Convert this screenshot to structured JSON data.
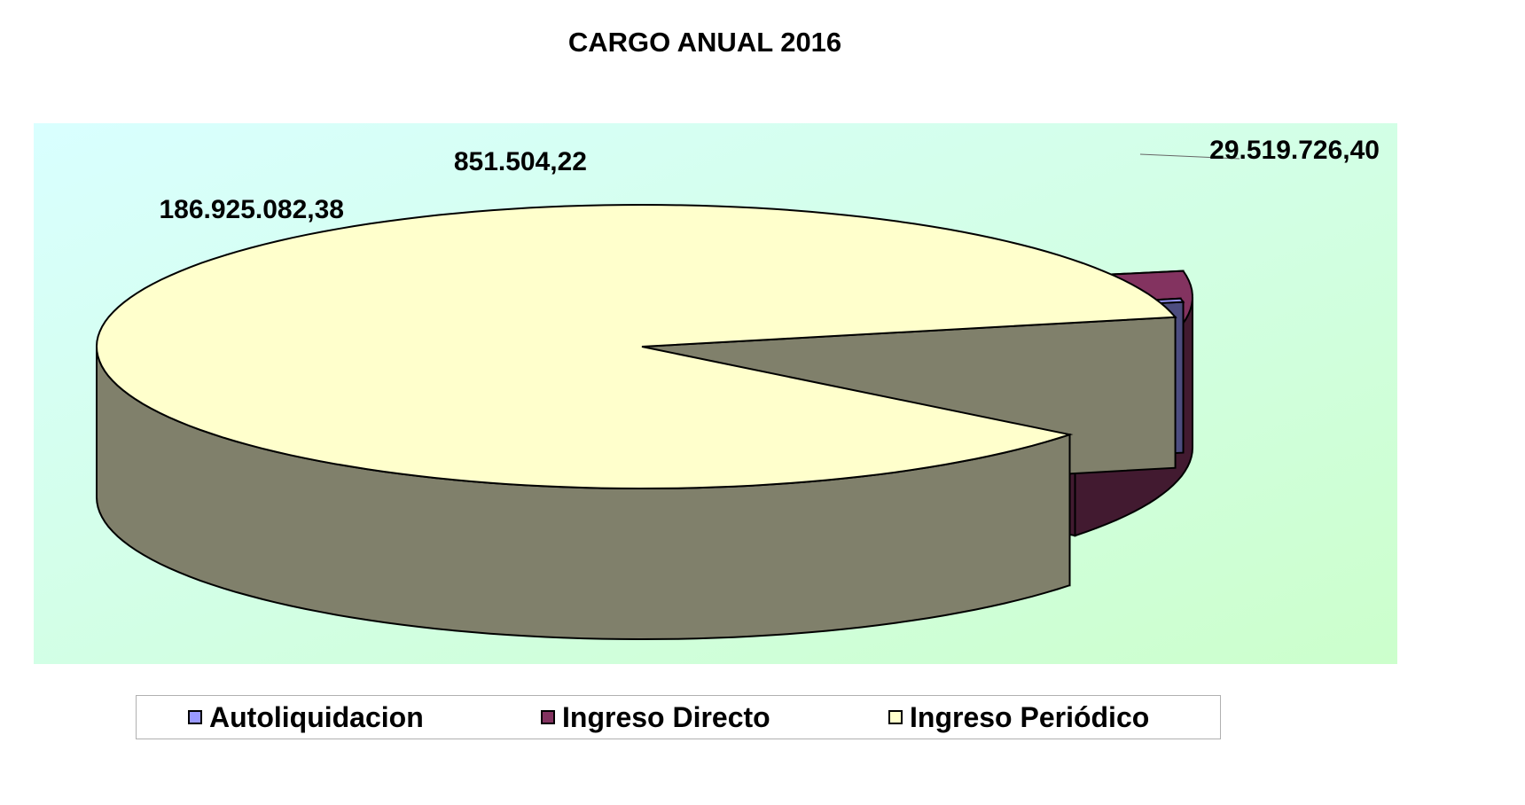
{
  "chart_data": {
    "type": "pie",
    "title": "CARGO ANUAL 2016",
    "categories": [
      "Autoliquidacion",
      "Ingreso Directo",
      "Ingreso Periódico"
    ],
    "values": [
      851504.22,
      29519726.4,
      186925082.38
    ],
    "data_labels": [
      "851.504,22",
      "29.519.726,40",
      "186.925.082,38"
    ],
    "colors": [
      "#9999ff",
      "#833360",
      "#ffffcc"
    ],
    "side_colors": [
      "#4d4d80",
      "#421a30",
      "#80806b"
    ],
    "legend_position": "bottom",
    "exploded": true,
    "three_d": true
  },
  "plot_background": [
    "#d9ffff",
    "#ccffcc"
  ]
}
